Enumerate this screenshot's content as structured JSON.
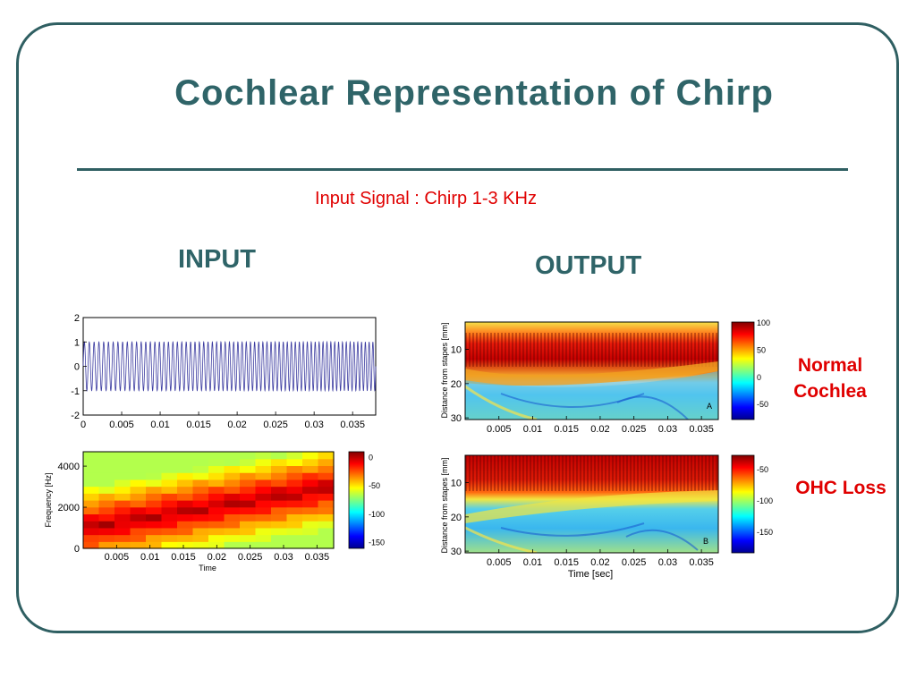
{
  "slide": {
    "title": "Cochlear  Representation of Chirp",
    "subtitle": "Input Signal : Chirp 1-3 KHz",
    "input_heading": "INPUT",
    "output_heading": "OUTPUT",
    "normal_label_line1": "Normal",
    "normal_label_line2": "Cochlea",
    "ohc_label": "OHC Loss",
    "colors": {
      "heading": "#2f6468",
      "accent_red": "#e00000",
      "frame": "#2f5f62"
    }
  },
  "chart_data": [
    {
      "id": "waveform",
      "type": "line",
      "x_ticks": [
        "0",
        "0.005",
        "0.01",
        "0.015",
        "0.02",
        "0.025",
        "0.03",
        "0.035"
      ],
      "y_ticks": [
        "2",
        "1",
        "0",
        "-1",
        "-2"
      ],
      "xlim": [
        0,
        0.038
      ],
      "ylim": [
        -2,
        2
      ],
      "series_color": "#3b3ba0",
      "cycles": 69
    },
    {
      "id": "spectrogram",
      "type": "heatmap",
      "xlabel": "Time",
      "ylabel": "Frequency [Hz]",
      "x_ticks": [
        "0.005",
        "0.01",
        "0.015",
        "0.02",
        "0.025",
        "0.03",
        "0.035"
      ],
      "y_ticks": [
        "4000",
        "2000",
        "0"
      ],
      "colorbar_ticks": [
        "0",
        "-50",
        "-100",
        "-150"
      ],
      "freq_start_hz": 1000,
      "freq_end_hz": 3000
    },
    {
      "id": "normal-cochlea",
      "type": "heatmap",
      "ylabel": "Distance from stapes [mm]",
      "x_ticks": [
        "0.005",
        "0.01",
        "0.015",
        "0.02",
        "0.025",
        "0.03",
        "0.035"
      ],
      "y_ticks": [
        "10",
        "20",
        "30"
      ],
      "colorbar_ticks": [
        "100",
        "50",
        "0",
        "-50"
      ],
      "panel_letter": "A"
    },
    {
      "id": "ohc-loss",
      "type": "heatmap",
      "xlabel": "Time [sec]",
      "ylabel": "Distance from stapes [mm]",
      "x_ticks": [
        "0.005",
        "0.01",
        "0.015",
        "0.02",
        "0.025",
        "0.03",
        "0.035"
      ],
      "y_ticks": [
        "10",
        "20",
        "30"
      ],
      "colorbar_ticks": [
        "-50",
        "-100",
        "-150"
      ],
      "panel_letter": "B"
    }
  ]
}
